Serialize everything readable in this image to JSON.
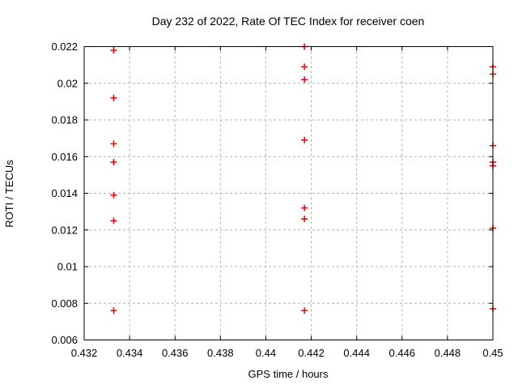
{
  "chart_data": {
    "type": "scatter",
    "title": "Day 232 of 2022, Rate Of TEC Index for receiver coen",
    "xlabel": "GPS time / hours",
    "ylabel": "ROTI / TECUs",
    "xlim": [
      0.432,
      0.45
    ],
    "ylim": [
      0.006,
      0.022
    ],
    "xticks": [
      0.432,
      0.434,
      0.436,
      0.438,
      0.44,
      0.442,
      0.444,
      0.446,
      0.448,
      0.45
    ],
    "xtick_labels": [
      "0.432",
      "0.434",
      "0.436",
      "0.438",
      "0.44",
      "0.442",
      "0.444",
      "0.446",
      "0.448",
      "0.45"
    ],
    "yticks": [
      0.006,
      0.008,
      0.01,
      0.012,
      0.014,
      0.016,
      0.018,
      0.02,
      0.022
    ],
    "ytick_labels": [
      "0.006",
      "0.008",
      "0.01",
      "0.012",
      "0.014",
      "0.016",
      "0.018",
      "0.02",
      "0.022"
    ],
    "grid": true,
    "legend": "none",
    "marker": "plus",
    "marker_color": "#e60000",
    "grid_color": "#b0b0b0",
    "axis_color": "#000000",
    "background_color": "#ffffff",
    "series": [
      {
        "name": "ROTI",
        "points": [
          {
            "x": 0.4333,
            "y": 0.0218
          },
          {
            "x": 0.4333,
            "y": 0.0192
          },
          {
            "x": 0.4333,
            "y": 0.0167
          },
          {
            "x": 0.4333,
            "y": 0.0157
          },
          {
            "x": 0.4333,
            "y": 0.0139
          },
          {
            "x": 0.4333,
            "y": 0.0125
          },
          {
            "x": 0.4333,
            "y": 0.0076
          },
          {
            "x": 0.4417,
            "y": 0.022
          },
          {
            "x": 0.4417,
            "y": 0.0209
          },
          {
            "x": 0.4417,
            "y": 0.0202
          },
          {
            "x": 0.4417,
            "y": 0.0169
          },
          {
            "x": 0.4417,
            "y": 0.0132
          },
          {
            "x": 0.4417,
            "y": 0.0126
          },
          {
            "x": 0.4417,
            "y": 0.0076
          },
          {
            "x": 0.45,
            "y": 0.0209
          },
          {
            "x": 0.45,
            "y": 0.0205
          },
          {
            "x": 0.45,
            "y": 0.0166
          },
          {
            "x": 0.45,
            "y": 0.0157
          },
          {
            "x": 0.45,
            "y": 0.0155
          },
          {
            "x": 0.45,
            "y": 0.0121
          },
          {
            "x": 0.45,
            "y": 0.0077
          }
        ]
      }
    ]
  }
}
